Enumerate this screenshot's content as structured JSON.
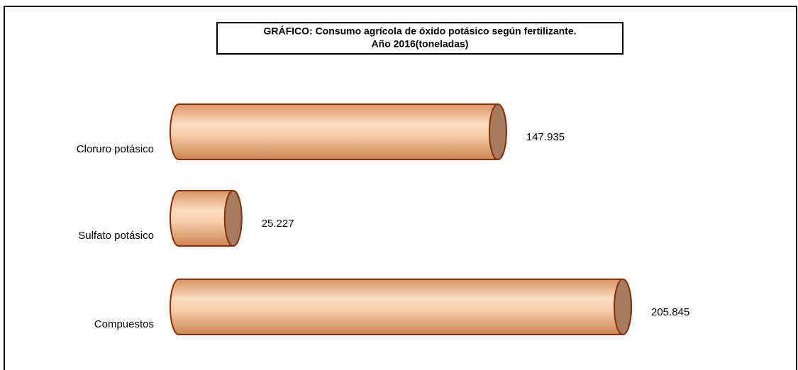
{
  "chart_data": {
    "type": "bar",
    "orientation": "horizontal",
    "style": "cylinder",
    "title": "GRÁFICO: Consumo agrícola de óxido potásico según fertilizante.",
    "subtitle": "Año 2016(toneladas)",
    "categories": [
      "Cloruro potásico",
      "Sulfato potásico",
      "Compuestos"
    ],
    "values": [
      147935,
      25227,
      205845
    ],
    "value_labels": [
      "147.935",
      "25.227",
      "205.845"
    ],
    "color": "#f2c19a"
  }
}
